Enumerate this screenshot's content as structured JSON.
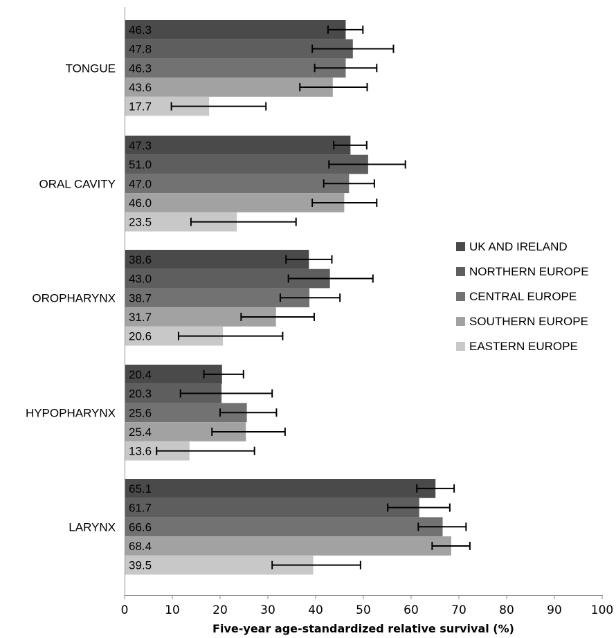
{
  "chart_data": {
    "type": "bar",
    "orientation": "horizontal",
    "xlabel": "Five-year age-standardized relative survival (%)",
    "xlim": [
      0,
      100
    ],
    "xticks": [
      "0",
      "10",
      "20",
      "30",
      "40",
      "50",
      "60",
      "70",
      "80",
      "90",
      "100"
    ],
    "categories": [
      "TONGUE",
      "ORAL CAVITY",
      "OROPHARYNX",
      "HYPOPHARYNX",
      "LARYNX"
    ],
    "legend_position": "right",
    "grid": false,
    "series": [
      {
        "name": "UK AND IRELAND",
        "color": "#4a4a4a",
        "values": [
          46.3,
          47.3,
          38.6,
          20.4,
          65.1
        ],
        "labels": [
          "46.3",
          "47.3",
          "38.6",
          "20.4",
          "65.1"
        ],
        "ci_low": [
          42.6,
          43.8,
          33.8,
          16.6,
          61.2
        ],
        "ci_high": [
          49.9,
          50.7,
          43.4,
          24.9,
          69.0
        ]
      },
      {
        "name": "NORTHERN EUROPE",
        "color": "#5e5e5e",
        "values": [
          47.8,
          51.0,
          43.0,
          20.3,
          61.7
        ],
        "labels": [
          "47.8",
          "51.0",
          "43.0",
          "20.3",
          "61.7"
        ],
        "ci_low": [
          39.3,
          42.8,
          34.3,
          11.7,
          55.1
        ],
        "ci_high": [
          56.3,
          58.8,
          52.0,
          30.9,
          68.1
        ]
      },
      {
        "name": "CENTRAL EUROPE",
        "color": "#727272",
        "values": [
          46.3,
          47.0,
          38.7,
          25.6,
          66.6
        ],
        "labels": [
          "46.3",
          "47.0",
          "38.7",
          "25.6",
          "66.6"
        ],
        "ci_low": [
          39.8,
          41.7,
          32.6,
          20.0,
          61.5
        ],
        "ci_high": [
          52.8,
          52.3,
          45.1,
          31.8,
          71.5
        ]
      },
      {
        "name": "SOUTHERN EUROPE",
        "color": "#a2a2a2",
        "values": [
          43.6,
          46.0,
          31.7,
          25.4,
          68.4
        ],
        "labels": [
          "43.6",
          "46.0",
          "31.7",
          "25.4",
          "68.4"
        ],
        "ci_low": [
          36.7,
          39.3,
          24.4,
          18.3,
          64.4
        ],
        "ci_high": [
          50.8,
          52.8,
          39.7,
          33.6,
          72.3
        ]
      },
      {
        "name": "EASTERN EUROPE",
        "color": "#c8c8c8",
        "values": [
          17.7,
          23.5,
          20.6,
          13.6,
          39.5
        ],
        "labels": [
          "17.7",
          "23.5",
          "20.6",
          "13.6",
          "39.5"
        ],
        "ci_low": [
          9.8,
          13.9,
          11.3,
          6.7,
          30.9
        ],
        "ci_high": [
          29.6,
          35.9,
          33.1,
          27.2,
          49.4
        ]
      }
    ]
  }
}
